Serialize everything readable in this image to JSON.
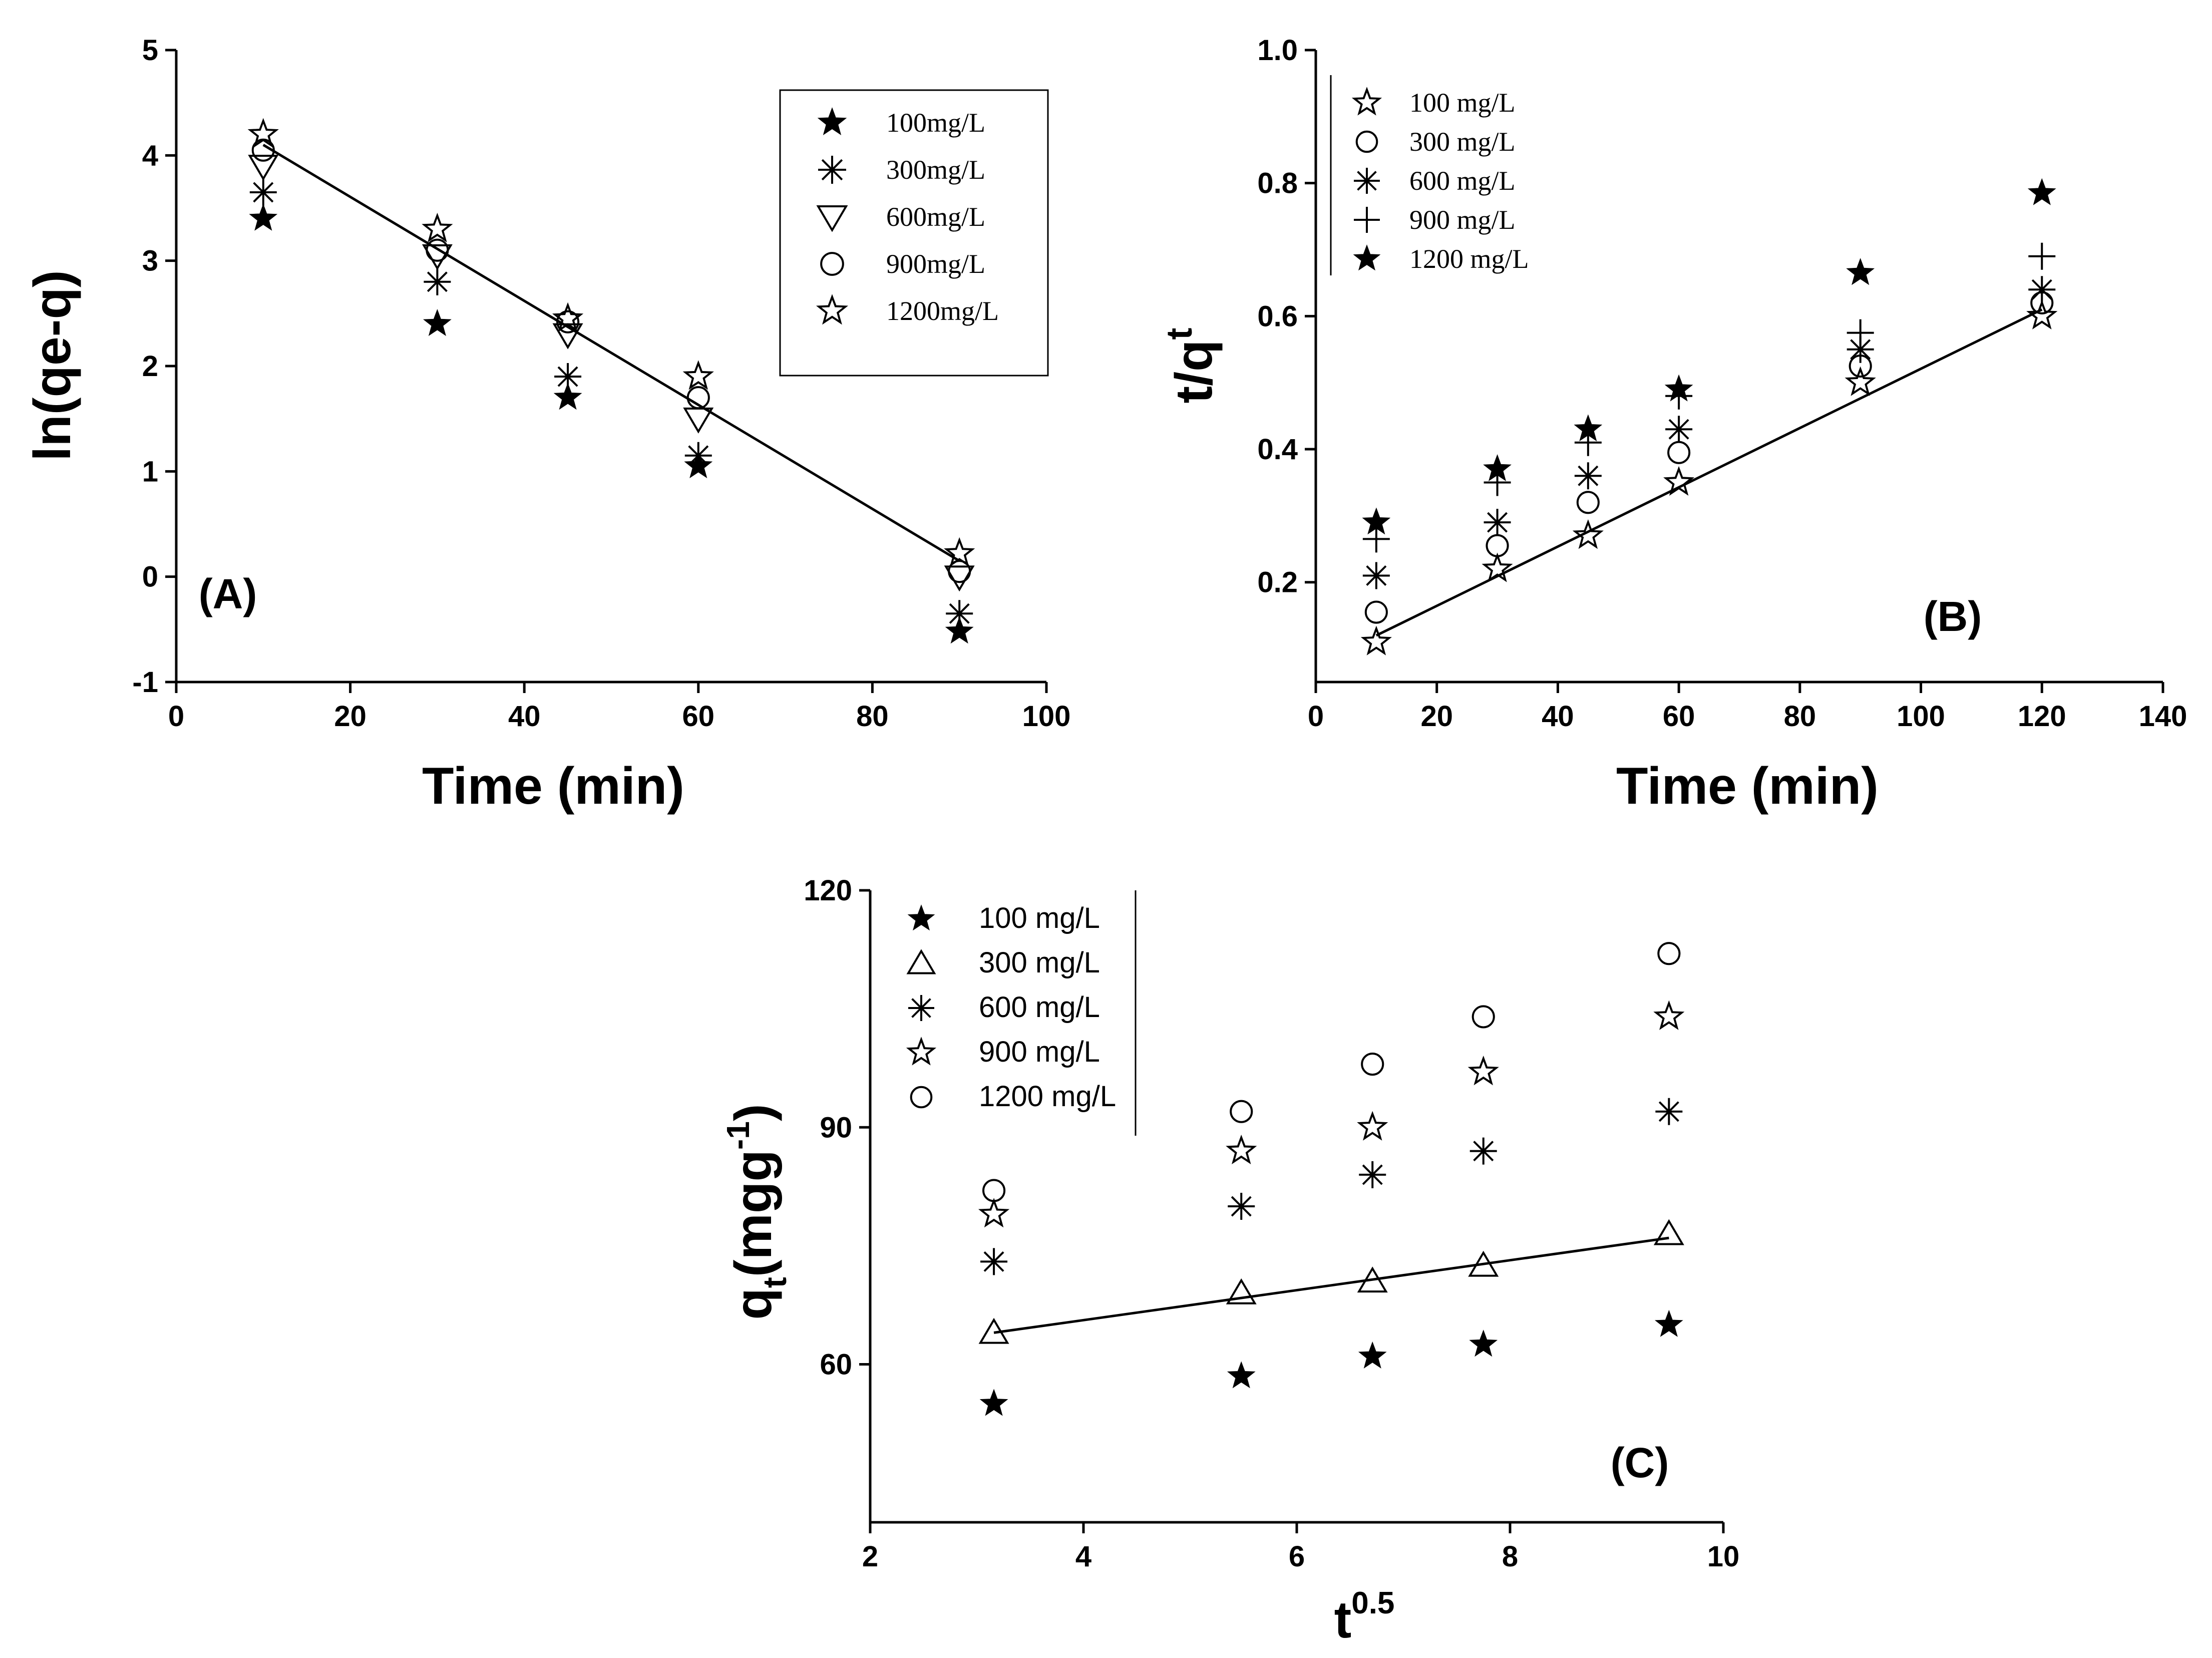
{
  "chart_data": [
    {
      "type": "scatter",
      "panel_label": "(A)",
      "xlabel": "Time (min)",
      "ylabel": "ln(qe-q)",
      "xlim": [
        0,
        100
      ],
      "ylim": [
        -1,
        5
      ],
      "xticks": [
        "0",
        "20",
        "40",
        "60",
        "80",
        "100"
      ],
      "yticks": [
        "-1",
        "0",
        "1",
        "2",
        "3",
        "4",
        "5"
      ],
      "legend_position": "top-right",
      "x": [
        10,
        30,
        45,
        60,
        90
      ],
      "series": [
        {
          "name": "100mg/L",
          "marker": "filled-star",
          "values": [
            3.4,
            2.4,
            1.7,
            1.05,
            -0.52
          ]
        },
        {
          "name": "300mg/L",
          "marker": "asterisk",
          "values": [
            3.65,
            2.8,
            1.9,
            1.15,
            -0.35
          ]
        },
        {
          "name": "600mg/L",
          "marker": "triangle-down",
          "values": [
            3.9,
            3.05,
            2.3,
            1.5,
            0.0
          ]
        },
        {
          "name": "900mg/L",
          "marker": "circle",
          "values": [
            4.05,
            3.1,
            2.42,
            1.7,
            0.05
          ]
        },
        {
          "name": "1200mg/L",
          "marker": "open-star",
          "values": [
            4.2,
            3.3,
            2.45,
            1.9,
            0.22
          ]
        }
      ],
      "fit_line": {
        "x": [
          10,
          90
        ],
        "y": [
          4.1,
          0.15
        ]
      }
    },
    {
      "type": "scatter",
      "panel_label": "(B)",
      "xlabel": "Time (min)",
      "ylabel": "t/q",
      "ylabel_sup": "t",
      "xlim": [
        0,
        140
      ],
      "ylim": [
        0.05,
        1.0
      ],
      "xticks": [
        "0",
        "20",
        "40",
        "60",
        "80",
        "100",
        "120",
        "140"
      ],
      "yticks": [
        "0.2",
        "0.4",
        "0.6",
        "0.8",
        "1.0"
      ],
      "legend_position": "top-left",
      "x": [
        10,
        30,
        45,
        60,
        90,
        120
      ],
      "series": [
        {
          "name": "100 mg/L",
          "marker": "open-star",
          "values": [
            0.11,
            0.22,
            0.27,
            0.35,
            0.5,
            0.6
          ]
        },
        {
          "name": "300 mg/L",
          "marker": "circle",
          "values": [
            0.155,
            0.255,
            0.32,
            0.395,
            0.525,
            0.62
          ]
        },
        {
          "name": "600 mg/L",
          "marker": "asterisk",
          "values": [
            0.21,
            0.29,
            0.36,
            0.43,
            0.55,
            0.64
          ]
        },
        {
          "name": "900 mg/L",
          "marker": "plus",
          "values": [
            0.265,
            0.35,
            0.41,
            0.48,
            0.575,
            0.69
          ]
        },
        {
          "name": "1200 mg/L",
          "marker": "filled-star",
          "values": [
            0.29,
            0.37,
            0.43,
            0.49,
            0.665,
            0.785
          ]
        }
      ],
      "fit_line": {
        "x": [
          10,
          120
        ],
        "y": [
          0.12,
          0.61
        ]
      }
    },
    {
      "type": "scatter",
      "panel_label": "(C)",
      "xlabel": "t",
      "xlabel_sup": "0.5",
      "ylabel": "q",
      "ylabel_sub": "t",
      "ylabel_units": "(mgg",
      "ylabel_units_sup": "-1",
      "ylabel_units_close": ")",
      "xlim": [
        2,
        10
      ],
      "ylim": [
        40,
        120
      ],
      "xticks": [
        "2",
        "4",
        "6",
        "8",
        "10"
      ],
      "yticks": [
        "60",
        "90",
        "120"
      ],
      "legend_position": "top-left",
      "x": [
        3.16,
        5.48,
        6.71,
        7.75,
        9.49
      ],
      "series": [
        {
          "name": "100 mg/L",
          "marker": "filled-star",
          "values": [
            55,
            58.5,
            61,
            62.5,
            65
          ]
        },
        {
          "name": "300 mg/L",
          "marker": "triangle-up",
          "values": [
            64,
            69,
            70.5,
            72.5,
            76.5
          ]
        },
        {
          "name": "600 mg/L",
          "marker": "asterisk",
          "values": [
            73,
            80,
            84,
            87,
            92
          ]
        },
        {
          "name": "900 mg/L",
          "marker": "open-star",
          "values": [
            79,
            87,
            90,
            97,
            104
          ]
        },
        {
          "name": "1200 mg/L",
          "marker": "circle",
          "values": [
            82,
            92,
            98,
            104,
            112
          ]
        }
      ],
      "fit_line": {
        "x": [
          3.16,
          9.49
        ],
        "y": [
          64,
          76
        ]
      }
    }
  ]
}
